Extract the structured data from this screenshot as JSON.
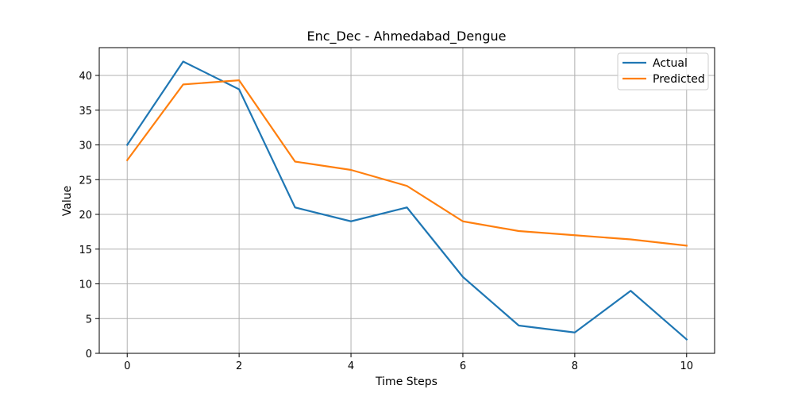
{
  "chart_data": {
    "type": "line",
    "title": "Enc_Dec - Ahmedabad_Dengue",
    "xlabel": "Time Steps",
    "ylabel": "Value",
    "x": [
      0,
      1,
      2,
      3,
      4,
      5,
      6,
      7,
      8,
      9,
      10
    ],
    "xlim": [
      -0.5,
      10.5
    ],
    "ylim": [
      0,
      44
    ],
    "xticks": [
      0,
      2,
      4,
      6,
      8,
      10
    ],
    "yticks": [
      0,
      5,
      10,
      15,
      20,
      25,
      30,
      35,
      40
    ],
    "grid": true,
    "legend_position": "top-right",
    "series": [
      {
        "name": "Actual",
        "color": "#1f77b4",
        "values": [
          30,
          42,
          38,
          21,
          19,
          21,
          11,
          4,
          3,
          9,
          2
        ]
      },
      {
        "name": "Predicted",
        "color": "#ff7f0e",
        "values": [
          27.8,
          38.7,
          39.3,
          27.6,
          26.4,
          24.1,
          19.0,
          17.6,
          17.0,
          16.4,
          15.5
        ]
      }
    ]
  }
}
